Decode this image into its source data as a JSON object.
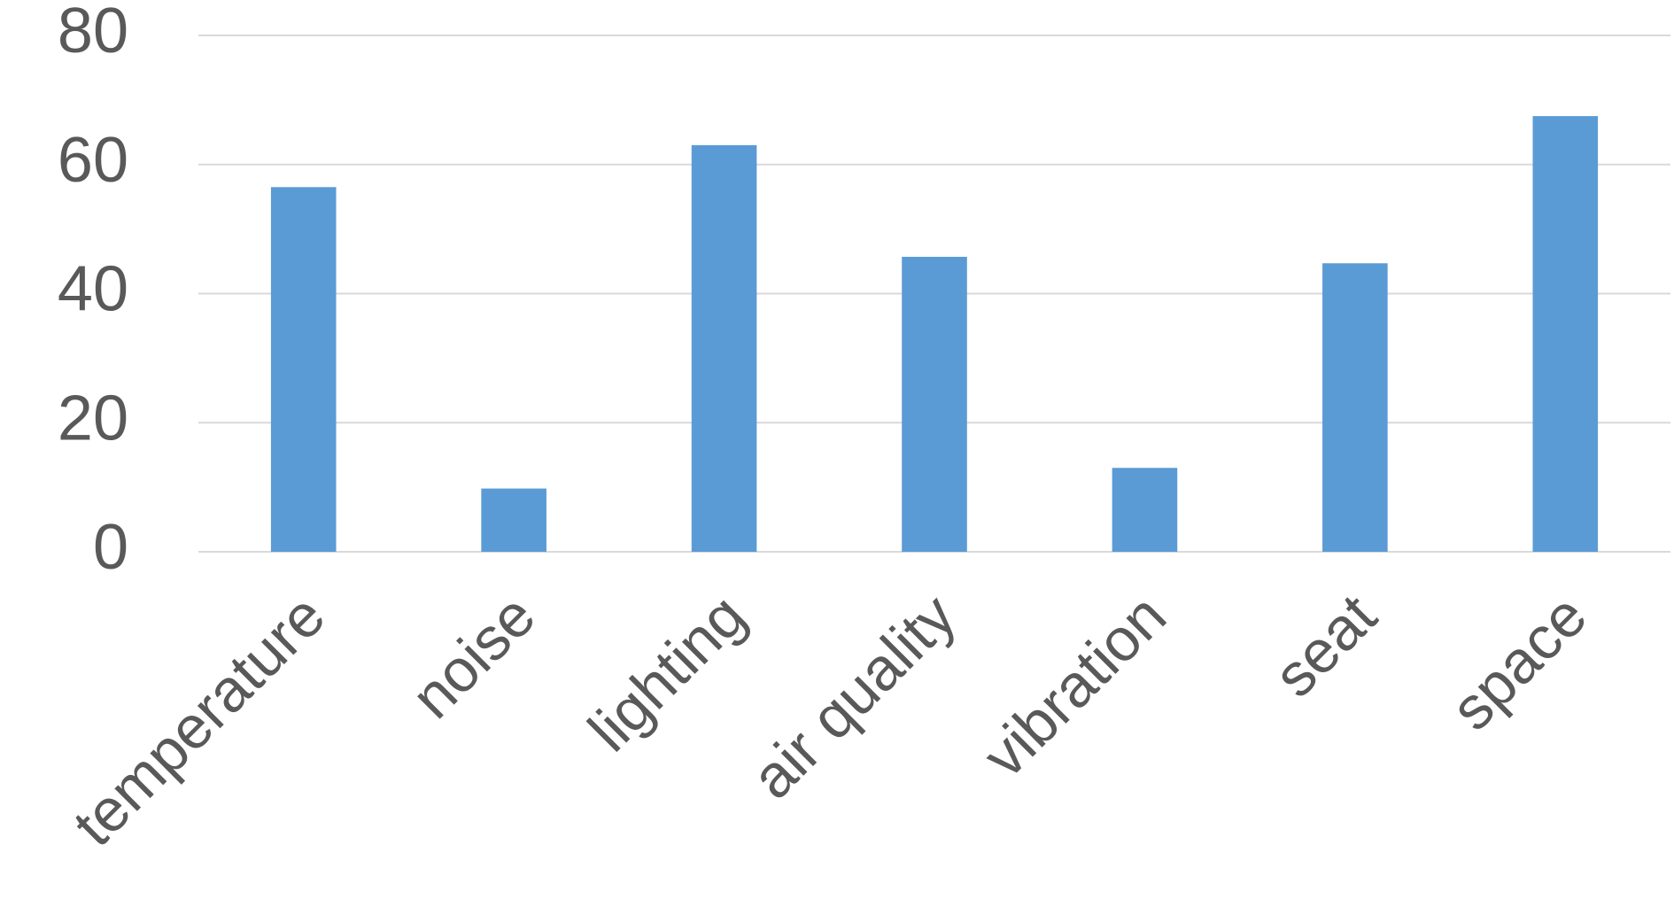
{
  "chart_data": {
    "type": "bar",
    "categories": [
      "temperature",
      "noise",
      "lighting",
      "air quality",
      "vibration",
      "seat",
      "space"
    ],
    "values": [
      56.5,
      9.8,
      63,
      45.7,
      13,
      44.7,
      67.5
    ],
    "color": "#5b9bd5",
    "ylim": [
      0,
      80
    ],
    "yticks": [
      0,
      20,
      40,
      60,
      80
    ],
    "grid": true
  }
}
